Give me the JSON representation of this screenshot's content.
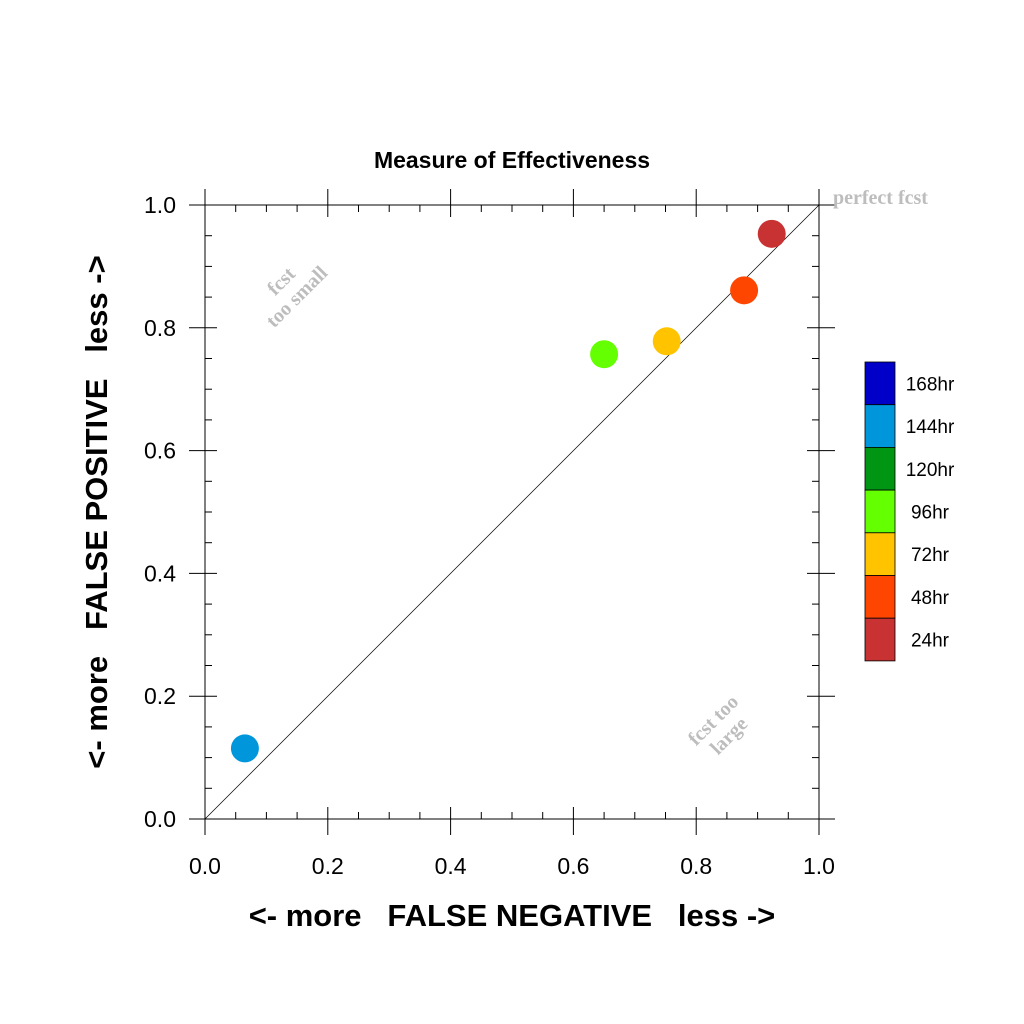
{
  "chart_data": {
    "type": "scatter",
    "title": "Measure of Effectiveness",
    "xlabel": "<- more   FALSE NEGATIVE   less ->",
    "ylabel": "<- more   FALSE POSITIVE   less ->",
    "xlim": [
      0.0,
      1.0
    ],
    "ylim": [
      0.0,
      1.0
    ],
    "x_ticks": [
      "0.0",
      "0.2",
      "0.4",
      "0.6",
      "0.8",
      "1.0"
    ],
    "y_ticks": [
      "0.0",
      "0.2",
      "0.4",
      "0.6",
      "0.8",
      "1.0"
    ],
    "grid": false,
    "reference_line": "diagonal",
    "annotations": {
      "perfect": "perfect fcst",
      "too_small": [
        "fcst",
        "too small"
      ],
      "too_large": [
        "fcst too",
        "large"
      ]
    },
    "legend": {
      "placement": "right",
      "entries": [
        {
          "label": "168hr",
          "color": "#0000c8"
        },
        {
          "label": "144hr",
          "color": "#0096dc"
        },
        {
          "label": "120hr",
          "color": "#009614"
        },
        {
          "label": "96hr",
          "color": "#64ff00"
        },
        {
          "label": "72hr",
          "color": "#ffc300"
        },
        {
          "label": "48hr",
          "color": "#ff4600"
        },
        {
          "label": "24hr",
          "color": "#c83232"
        }
      ]
    },
    "points": [
      {
        "series": "144hr",
        "x": 0.065,
        "y": 0.115,
        "color": "#0096dc"
      },
      {
        "series": "96hr",
        "x": 0.65,
        "y": 0.757,
        "color": "#64ff00"
      },
      {
        "series": "72hr",
        "x": 0.752,
        "y": 0.778,
        "color": "#ffc300"
      },
      {
        "series": "48hr",
        "x": 0.878,
        "y": 0.861,
        "color": "#ff4600"
      },
      {
        "series": "24hr",
        "x": 0.923,
        "y": 0.953,
        "color": "#c83232"
      }
    ]
  }
}
